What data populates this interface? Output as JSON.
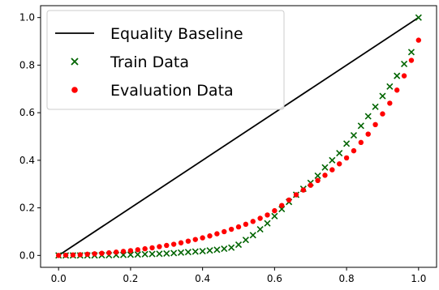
{
  "chart_data": {
    "type": "scatter",
    "xlim": [
      -0.05,
      1.05
    ],
    "ylim": [
      -0.05,
      1.05
    ],
    "x_ticks": [
      "0.0",
      "0.2",
      "0.4",
      "0.6",
      "0.8",
      "1.0"
    ],
    "y_ticks": [
      "0.0",
      "0.2",
      "0.4",
      "0.6",
      "0.8",
      "1.0"
    ],
    "grid": false,
    "legend_position": "top-left",
    "series": [
      {
        "name": "Equality Baseline",
        "kind": "line",
        "color": "#000000",
        "x": [
          0.0,
          1.0
        ],
        "y": [
          0.0,
          1.0
        ]
      },
      {
        "name": "Train Data",
        "kind": "marker-x",
        "color": "#006400",
        "x": [
          0.0,
          0.02,
          0.04,
          0.06,
          0.08,
          0.1,
          0.12,
          0.14,
          0.16,
          0.18,
          0.2,
          0.22,
          0.24,
          0.26,
          0.28,
          0.3,
          0.32,
          0.34,
          0.36,
          0.38,
          0.4,
          0.42,
          0.44,
          0.46,
          0.48,
          0.5,
          0.52,
          0.54,
          0.56,
          0.58,
          0.6,
          0.62,
          0.64,
          0.66,
          0.68,
          0.7,
          0.72,
          0.74,
          0.76,
          0.78,
          0.8,
          0.82,
          0.84,
          0.86,
          0.88,
          0.9,
          0.92,
          0.94,
          0.96,
          0.98,
          1.0
        ],
        "y": [
          0.0,
          0.0,
          0.0,
          0.0,
          0.0,
          0.0,
          0.001,
          0.001,
          0.002,
          0.002,
          0.003,
          0.004,
          0.005,
          0.006,
          0.007,
          0.008,
          0.01,
          0.012,
          0.014,
          0.016,
          0.018,
          0.021,
          0.024,
          0.028,
          0.033,
          0.045,
          0.065,
          0.085,
          0.11,
          0.135,
          0.165,
          0.195,
          0.225,
          0.255,
          0.28,
          0.305,
          0.335,
          0.37,
          0.4,
          0.43,
          0.47,
          0.505,
          0.545,
          0.585,
          0.625,
          0.67,
          0.71,
          0.755,
          0.805,
          0.855,
          1.0
        ]
      },
      {
        "name": "Evaluation Data",
        "kind": "marker-dot",
        "color": "#ff0000",
        "x": [
          0.0,
          0.02,
          0.04,
          0.06,
          0.08,
          0.1,
          0.12,
          0.14,
          0.16,
          0.18,
          0.2,
          0.22,
          0.24,
          0.26,
          0.28,
          0.3,
          0.32,
          0.34,
          0.36,
          0.38,
          0.4,
          0.42,
          0.44,
          0.46,
          0.48,
          0.5,
          0.52,
          0.54,
          0.56,
          0.58,
          0.6,
          0.62,
          0.64,
          0.66,
          0.68,
          0.7,
          0.72,
          0.74,
          0.76,
          0.78,
          0.8,
          0.82,
          0.84,
          0.86,
          0.88,
          0.9,
          0.92,
          0.94,
          0.96,
          0.98,
          1.0
        ],
        "y": [
          0.0,
          0.001,
          0.002,
          0.003,
          0.005,
          0.007,
          0.009,
          0.011,
          0.014,
          0.017,
          0.02,
          0.024,
          0.028,
          0.032,
          0.037,
          0.042,
          0.047,
          0.053,
          0.06,
          0.067,
          0.074,
          0.082,
          0.091,
          0.1,
          0.11,
          0.12,
          0.131,
          0.143,
          0.156,
          0.17,
          0.188,
          0.21,
          0.233,
          0.255,
          0.275,
          0.295,
          0.315,
          0.337,
          0.36,
          0.385,
          0.41,
          0.44,
          0.475,
          0.51,
          0.55,
          0.595,
          0.64,
          0.695,
          0.755,
          0.82,
          0.905
        ]
      }
    ]
  }
}
